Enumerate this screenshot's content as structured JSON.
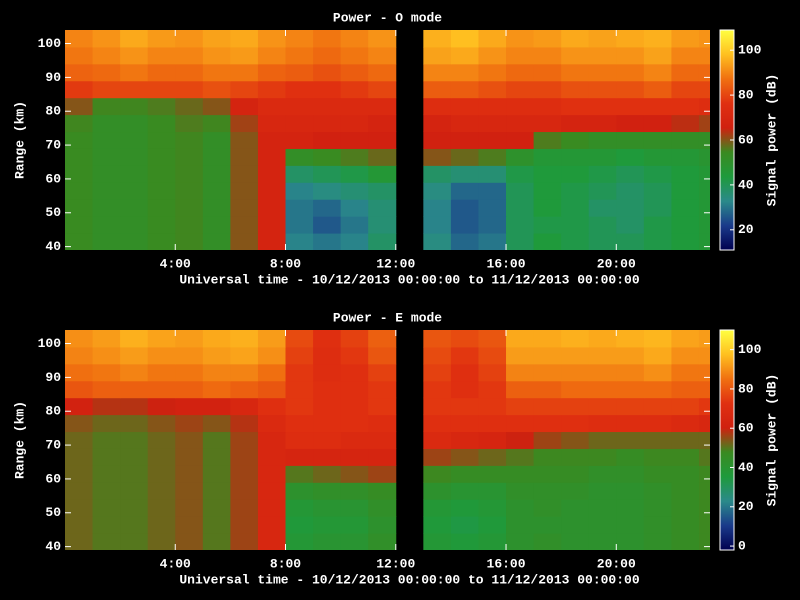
{
  "chart_data": [
    {
      "type": "heatmap",
      "title": "Power - O mode",
      "xlabel": "Universal time - 10/12/2013 00:00:00 to 11/12/2013 00:00:00",
      "ylabel": "Range (km)",
      "colorbar_label": "Signal power (dB)",
      "x_bins": [
        0,
        1,
        2,
        3,
        4,
        5,
        6,
        7,
        8,
        9,
        10,
        11,
        12,
        13,
        14,
        15,
        16,
        17,
        18,
        19,
        20,
        21,
        22,
        23,
        24
      ],
      "y_bins": [
        39,
        44,
        49,
        54,
        59,
        64,
        69,
        74,
        79,
        84,
        89,
        94,
        99,
        104
      ],
      "values": [
        [
          54,
          52,
          52,
          54,
          55,
          52,
          60,
          68,
          32,
          30,
          32,
          38,
          null,
          34,
          28,
          30,
          40,
          44,
          42,
          40,
          40,
          42,
          44,
          46
        ],
        [
          54,
          52,
          52,
          54,
          55,
          52,
          60,
          68,
          30,
          26,
          30,
          36,
          null,
          32,
          26,
          28,
          40,
          42,
          42,
          40,
          38,
          42,
          44,
          46
        ],
        [
          54,
          52,
          52,
          54,
          55,
          52,
          60,
          68,
          30,
          28,
          32,
          36,
          null,
          32,
          26,
          28,
          40,
          44,
          42,
          38,
          38,
          40,
          44,
          46
        ],
        [
          54,
          52,
          52,
          54,
          55,
          52,
          60,
          68,
          32,
          34,
          36,
          38,
          null,
          34,
          28,
          28,
          40,
          44,
          42,
          40,
          38,
          40,
          44,
          46
        ],
        [
          54,
          52,
          52,
          54,
          55,
          52,
          60,
          68,
          38,
          40,
          42,
          46,
          null,
          38,
          36,
          36,
          42,
          44,
          44,
          42,
          40,
          42,
          44,
          46
        ],
        [
          54,
          52,
          52,
          54,
          55,
          52,
          60,
          68,
          52,
          54,
          56,
          58,
          null,
          60,
          58,
          56,
          50,
          46,
          46,
          46,
          44,
          46,
          46,
          48
        ],
        [
          54,
          52,
          52,
          54,
          55,
          52,
          60,
          68,
          68,
          66,
          66,
          66,
          null,
          66,
          66,
          66,
          66,
          56,
          54,
          52,
          52,
          52,
          52,
          52
        ],
        [
          55,
          52,
          52,
          54,
          56,
          55,
          62,
          70,
          70,
          70,
          70,
          68,
          null,
          68,
          70,
          70,
          70,
          70,
          68,
          68,
          66,
          66,
          64,
          62
        ],
        [
          60,
          55,
          55,
          56,
          58,
          60,
          68,
          72,
          72,
          72,
          72,
          72,
          null,
          74,
          74,
          74,
          74,
          74,
          76,
          76,
          76,
          76,
          76,
          74
        ],
        [
          78,
          80,
          80,
          80,
          80,
          82,
          80,
          78,
          76,
          76,
          78,
          80,
          null,
          84,
          84,
          82,
          80,
          80,
          82,
          82,
          82,
          84,
          80,
          80
        ],
        [
          85,
          86,
          88,
          86,
          86,
          88,
          88,
          85,
          84,
          82,
          84,
          86,
          null,
          90,
          90,
          88,
          86,
          86,
          88,
          88,
          88,
          90,
          86,
          86
        ],
        [
          88,
          90,
          92,
          90,
          90,
          92,
          93,
          90,
          88,
          86,
          88,
          90,
          null,
          94,
          95,
          92,
          90,
          90,
          92,
          92,
          92,
          94,
          90,
          90
        ],
        [
          90,
          92,
          95,
          93,
          92,
          94,
          95,
          92,
          90,
          88,
          90,
          92,
          null,
          96,
          98,
          95,
          92,
          93,
          95,
          94,
          95,
          96,
          93,
          92
        ]
      ],
      "xlim": [
        0,
        23.4
      ],
      "ylim": [
        39,
        104
      ],
      "xticks": [
        {
          "value": 4,
          "label": "4:00"
        },
        {
          "value": 8,
          "label": "8:00"
        },
        {
          "value": 12,
          "label": "12:00"
        },
        {
          "value": 16,
          "label": "16:00"
        },
        {
          "value": 20,
          "label": "20:00"
        }
      ],
      "yticks": [
        40,
        50,
        60,
        70,
        80,
        90,
        100
      ],
      "zlim": [
        11,
        109
      ],
      "zticks": [
        20,
        40,
        60,
        80,
        100
      ],
      "colorscale": [
        "#000050",
        "#1a3a8a",
        "#2a8a8a",
        "#1e9a3c",
        "#3a8a20",
        "#d02010",
        "#e03010",
        "#f07010",
        "#ffc020",
        "#ffff40"
      ]
    },
    {
      "type": "heatmap",
      "title": "Power - E mode",
      "xlabel": "Universal time - 10/12/2013 00:00:00 to 11/12/2013 00:00:00",
      "ylabel": "Range (km)",
      "colorbar_label": "Signal power (dB)",
      "x_bins": [
        0,
        1,
        2,
        3,
        4,
        5,
        6,
        7,
        8,
        9,
        10,
        11,
        12,
        13,
        14,
        15,
        16,
        17,
        18,
        19,
        20,
        21,
        22,
        23,
        24
      ],
      "y_bins": [
        39,
        44,
        49,
        54,
        59,
        64,
        69,
        74,
        79,
        84,
        89,
        94,
        99,
        104
      ],
      "values": [
        [
          52,
          50,
          50,
          52,
          54,
          50,
          56,
          66,
          38,
          40,
          40,
          44,
          null,
          38,
          36,
          38,
          42,
          44,
          42,
          42,
          42,
          44,
          46,
          48
        ],
        [
          52,
          50,
          50,
          52,
          54,
          50,
          56,
          66,
          36,
          38,
          38,
          42,
          null,
          36,
          34,
          36,
          42,
          42,
          42,
          42,
          42,
          44,
          46,
          48
        ],
        [
          52,
          50,
          50,
          52,
          54,
          50,
          56,
          66,
          38,
          40,
          40,
          44,
          null,
          38,
          36,
          38,
          42,
          44,
          42,
          42,
          42,
          44,
          46,
          48
        ],
        [
          52,
          50,
          50,
          52,
          54,
          50,
          56,
          66,
          42,
          44,
          44,
          46,
          null,
          42,
          40,
          40,
          44,
          44,
          44,
          42,
          42,
          44,
          46,
          48
        ],
        [
          52,
          50,
          50,
          52,
          54,
          50,
          56,
          66,
          50,
          52,
          54,
          56,
          null,
          48,
          46,
          46,
          46,
          46,
          46,
          44,
          44,
          46,
          46,
          48
        ],
        [
          52,
          50,
          50,
          52,
          54,
          50,
          56,
          66,
          64,
          64,
          64,
          64,
          null,
          56,
          54,
          52,
          50,
          48,
          48,
          48,
          46,
          48,
          48,
          50
        ],
        [
          52,
          50,
          50,
          52,
          54,
          50,
          56,
          66,
          70,
          70,
          68,
          68,
          null,
          68,
          66,
          64,
          60,
          56,
          54,
          52,
          52,
          52,
          52,
          52
        ],
        [
          54,
          52,
          52,
          54,
          56,
          54,
          58,
          68,
          72,
          72,
          72,
          70,
          null,
          72,
          72,
          72,
          72,
          72,
          72,
          70,
          70,
          70,
          68,
          66
        ],
        [
          62,
          58,
          58,
          60,
          62,
          62,
          66,
          72,
          74,
          72,
          72,
          74,
          null,
          74,
          74,
          74,
          76,
          76,
          76,
          76,
          76,
          76,
          76,
          74
        ],
        [
          80,
          82,
          82,
          82,
          82,
          84,
          82,
          80,
          74,
          72,
          72,
          74,
          null,
          74,
          72,
          74,
          82,
          82,
          84,
          84,
          84,
          84,
          82,
          82
        ],
        [
          85,
          86,
          88,
          86,
          86,
          88,
          88,
          85,
          74,
          70,
          72,
          76,
          null,
          76,
          72,
          76,
          88,
          88,
          88,
          88,
          88,
          90,
          86,
          86
        ],
        [
          88,
          90,
          92,
          90,
          90,
          92,
          93,
          90,
          76,
          70,
          74,
          80,
          null,
          78,
          74,
          78,
          92,
          92,
          92,
          92,
          92,
          94,
          90,
          90
        ],
        [
          90,
          92,
          95,
          93,
          92,
          94,
          95,
          92,
          78,
          72,
          76,
          82,
          null,
          80,
          78,
          80,
          94,
          94,
          95,
          94,
          95,
          96,
          93,
          92
        ]
      ],
      "xlim": [
        0,
        23.4
      ],
      "ylim": [
        39,
        104
      ],
      "xticks": [
        {
          "value": 4,
          "label": "4:00"
        },
        {
          "value": 8,
          "label": "8:00"
        },
        {
          "value": 12,
          "label": "12:00"
        },
        {
          "value": 16,
          "label": "16:00"
        },
        {
          "value": 20,
          "label": "20:00"
        }
      ],
      "yticks": [
        40,
        50,
        60,
        70,
        80,
        90,
        100
      ],
      "zlim": [
        -2,
        110
      ],
      "zticks": [
        0,
        20,
        40,
        60,
        80,
        100
      ],
      "colorscale": [
        "#000050",
        "#1a3a8a",
        "#2a8a8a",
        "#1e9a3c",
        "#3a8a20",
        "#d02010",
        "#e03010",
        "#f07010",
        "#ffc020",
        "#ffff40"
      ]
    }
  ]
}
